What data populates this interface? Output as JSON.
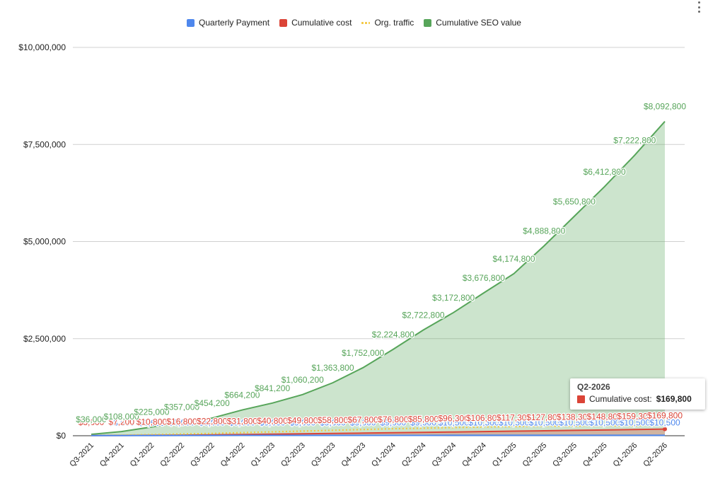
{
  "legend": [
    {
      "label": "Quarterly Payment",
      "color": "#4e87ed"
    },
    {
      "label": "Cumulative cost",
      "color": "#db4437"
    },
    {
      "label": "Org. traffic",
      "color": "#f4c73d",
      "style": "dotted"
    },
    {
      "label": "Cumulative SEO value",
      "color": "#57a55a"
    }
  ],
  "tooltip": {
    "title": "Q2-2026",
    "series": "Cumulative cost:",
    "value": "$169,800",
    "color": "#db4437"
  },
  "chart_data": {
    "type": "area",
    "ylim": [
      0,
      10000000
    ],
    "yticks": [
      0,
      2500000,
      5000000,
      7500000,
      10000000
    ],
    "ytick_labels": [
      "$0",
      "$2,500,000",
      "$5,000,000",
      "$7,500,000",
      "$10,000,000"
    ],
    "categories": [
      "Q3-2021",
      "Q4-2021",
      "Q1-2022",
      "Q2-2022",
      "Q3-2022",
      "Q4-2022",
      "Q1-2023",
      "Q2-2023",
      "Q3-2023",
      "Q4-2023",
      "Q1-2024",
      "Q2-2024",
      "Q3-2024",
      "Q4-2024",
      "Q1-2025",
      "Q2-2025",
      "Q3-2025",
      "Q4-2025",
      "Q1-2026",
      "Q2-2026"
    ],
    "grid": true,
    "legend_position": "top",
    "series": [
      {
        "name": "Quarterly Payment",
        "color": "#4e87ed",
        "type": "line",
        "values": [
          3600,
          3600,
          3600,
          6000,
          6000,
          9000,
          9000,
          9000,
          9000,
          9000,
          9000,
          9000,
          10500,
          10500,
          10500,
          10500,
          10500,
          10500,
          10500,
          10500
        ],
        "labels": [
          "$3,600",
          "$3,600",
          "$3,600",
          "$6,000",
          "$6,000",
          "$9,000",
          "$9,000",
          "$9,000",
          "$9,000",
          "$9,000",
          "$9,000",
          "$9,000",
          "$10,500",
          "$10,500",
          "$10,500",
          "$10,500",
          "$10,500",
          "$10,500",
          "$10,500",
          "$10,500"
        ]
      },
      {
        "name": "Cumulative cost",
        "color": "#db4437",
        "type": "area",
        "values": [
          3600,
          7200,
          10800,
          16800,
          22800,
          31800,
          40800,
          49800,
          58800,
          67800,
          76800,
          85800,
          96300,
          106800,
          117300,
          127800,
          138300,
          148800,
          159300,
          169800
        ],
        "labels": [
          "$3,600",
          "$7,200",
          "$10,800",
          "$16,800",
          "$22,800",
          "$31,800",
          "$40,800",
          "$49,800",
          "$58,800",
          "$67,800",
          "$76,800",
          "$85,800",
          "$96,300",
          "$106,800",
          "$117,300",
          "$127,800",
          "$138,300",
          "$148,800",
          "$159,300",
          "$169,800"
        ]
      },
      {
        "name": "Org. traffic",
        "color": "#f4c73d",
        "type": "dotted",
        "values": [
          5000,
          15000,
          30000,
          45000,
          60000,
          80000,
          100000,
          120000,
          140000,
          160000,
          180000,
          195000,
          210000,
          225000,
          235000,
          245000,
          250000,
          255000,
          260000,
          265000
        ]
      },
      {
        "name": "Cumulative SEO value",
        "color": "#57a55a",
        "type": "area",
        "values": [
          36000,
          108000,
          225000,
          357000,
          454200,
          664200,
          841200,
          1060200,
          1363800,
          1752000,
          2224800,
          2722800,
          3172800,
          3676800,
          4174800,
          4888800,
          5650800,
          6412800,
          7222800,
          8092800
        ],
        "labels": [
          "$36,000",
          "$108,000",
          "$225,000",
          "$357,000",
          "$454,200",
          "$664,200",
          "$841,200",
          "$1,060,200",
          "$1,363,800",
          "$1,752,000",
          "$2,224,800",
          "$2,722,800",
          "$3,172,800",
          "$3,676,800",
          "$4,174,800",
          "$4,888,800",
          "$5,650,800",
          "$6,412,800",
          "$7,222,800",
          "$8,092,800"
        ]
      }
    ]
  }
}
